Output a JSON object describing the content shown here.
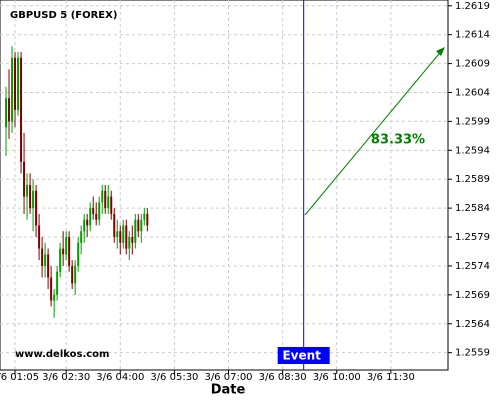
{
  "chart_data": {
    "type": "candlestick",
    "title": "GBPUSD 5 (FOREX)",
    "watermark": "www.delkos.com",
    "x_label": "Date",
    "x": [
      "3/6 00:50",
      "3/6 00:55",
      "3/6 01:00",
      "3/6 01:05",
      "3/6 01:10",
      "3/6 01:15",
      "3/6 01:20",
      "3/6 01:25",
      "3/6 01:30",
      "3/6 01:35",
      "3/6 01:40",
      "3/6 01:45",
      "3/6 01:50",
      "3/6 01:55",
      "3/6 02:00",
      "3/6 02:05",
      "3/6 02:10",
      "3/6 02:15",
      "3/6 02:20",
      "3/6 02:25",
      "3/6 02:30",
      "3/6 02:35",
      "3/6 02:40",
      "3/6 02:45",
      "3/6 02:50",
      "3/6 02:55",
      "3/6 03:00",
      "3/6 03:05",
      "3/6 03:10",
      "3/6 03:15",
      "3/6 03:20",
      "3/6 03:25",
      "3/6 03:30",
      "3/6 03:35",
      "3/6 03:40",
      "3/6 03:45",
      "3/6 03:50",
      "3/6 03:55",
      "3/6 04:00",
      "3/6 04:05",
      "3/6 04:10",
      "3/6 04:15",
      "3/6 04:20",
      "3/6 04:25",
      "3/6 04:30",
      "3/6 04:35",
      "3/6 04:40",
      "3/6 04:45"
    ],
    "open": [
      1.2598,
      1.2603,
      1.2599,
      1.261,
      1.2601,
      1.261,
      1.2592,
      1.2586,
      1.2588,
      1.2584,
      1.2587,
      1.2581,
      1.2577,
      1.2574,
      1.2576,
      1.2572,
      1.2568,
      1.2569,
      1.2573,
      1.2577,
      1.2576,
      1.2579,
      1.2574,
      1.2571,
      1.2574,
      1.2578,
      1.258,
      1.2582,
      1.2581,
      1.2584,
      1.2583,
      1.2582,
      1.2585,
      1.2587,
      1.2584,
      1.2586,
      1.2583,
      1.2579,
      1.258,
      1.2578,
      1.2581,
      1.2577,
      1.2579,
      1.2578,
      1.2582,
      1.258,
      1.2582,
      1.2583
    ],
    "high": [
      1.2605,
      1.2608,
      1.2612,
      1.2611,
      1.2611,
      1.2611,
      1.2597,
      1.259,
      1.259,
      1.2589,
      1.2588,
      1.2583,
      1.2579,
      1.2578,
      1.2577,
      1.2574,
      1.257,
      1.2574,
      1.2578,
      1.258,
      1.258,
      1.258,
      1.2575,
      1.2575,
      1.2579,
      1.2581,
      1.2583,
      1.2583,
      1.2585,
      1.2586,
      1.2585,
      1.2586,
      1.2588,
      1.2588,
      1.2588,
      1.2587,
      1.2584,
      1.2582,
      1.2581,
      1.2582,
      1.2582,
      1.258,
      1.2581,
      1.2583,
      1.2583,
      1.2583,
      1.2584,
      1.2584
    ],
    "low": [
      1.2593,
      1.2596,
      1.2597,
      1.2598,
      1.26,
      1.259,
      1.2583,
      1.2582,
      1.2583,
      1.258,
      1.2579,
      1.2575,
      1.2572,
      1.2572,
      1.257,
      1.2567,
      1.2565,
      1.2568,
      1.2572,
      1.2574,
      1.2575,
      1.2573,
      1.257,
      1.2569,
      1.2573,
      1.2576,
      1.2578,
      1.2579,
      1.258,
      1.2582,
      1.2581,
      1.2581,
      1.2583,
      1.2583,
      1.2583,
      1.2582,
      1.2578,
      1.2577,
      1.2576,
      1.2577,
      1.2576,
      1.2575,
      1.2576,
      1.2577,
      1.2579,
      1.2578,
      1.2581,
      1.258
    ],
    "close": [
      1.2603,
      1.2599,
      1.261,
      1.2601,
      1.261,
      1.2592,
      1.2586,
      1.2588,
      1.2584,
      1.2587,
      1.2581,
      1.2577,
      1.2574,
      1.2576,
      1.2572,
      1.2568,
      1.2569,
      1.2573,
      1.2577,
      1.2576,
      1.2579,
      1.2574,
      1.2571,
      1.2574,
      1.2578,
      1.258,
      1.2582,
      1.2581,
      1.2584,
      1.2583,
      1.2582,
      1.2585,
      1.2587,
      1.2584,
      1.2586,
      1.2583,
      1.2579,
      1.258,
      1.2578,
      1.2581,
      1.2577,
      1.2579,
      1.2578,
      1.2582,
      1.258,
      1.2582,
      1.2583,
      1.2581
    ],
    "up_color": "#00a000",
    "down_color": "#800000",
    "xlim": [
      "3/6 00:40",
      "3/6 13:05"
    ],
    "xticks": [
      "3/6 01:05",
      "3/6 02:30",
      "3/6 04:00",
      "3/6 05:30",
      "3/6 07:00",
      "3/6 08:30",
      "3/6 10:00",
      "3/6 11:30"
    ],
    "ylim": [
      1.2556,
      1.262
    ],
    "yticks": [
      1.2559,
      1.2564,
      1.2569,
      1.2574,
      1.2579,
      1.2584,
      1.2589,
      1.2594,
      1.2599,
      1.2604,
      1.2609,
      1.2614,
      1.2619
    ],
    "grid": true,
    "event": {
      "x": "3/6 09:05",
      "label": "Event",
      "color": "#0000ff"
    },
    "annotation": "83.33%"
  }
}
